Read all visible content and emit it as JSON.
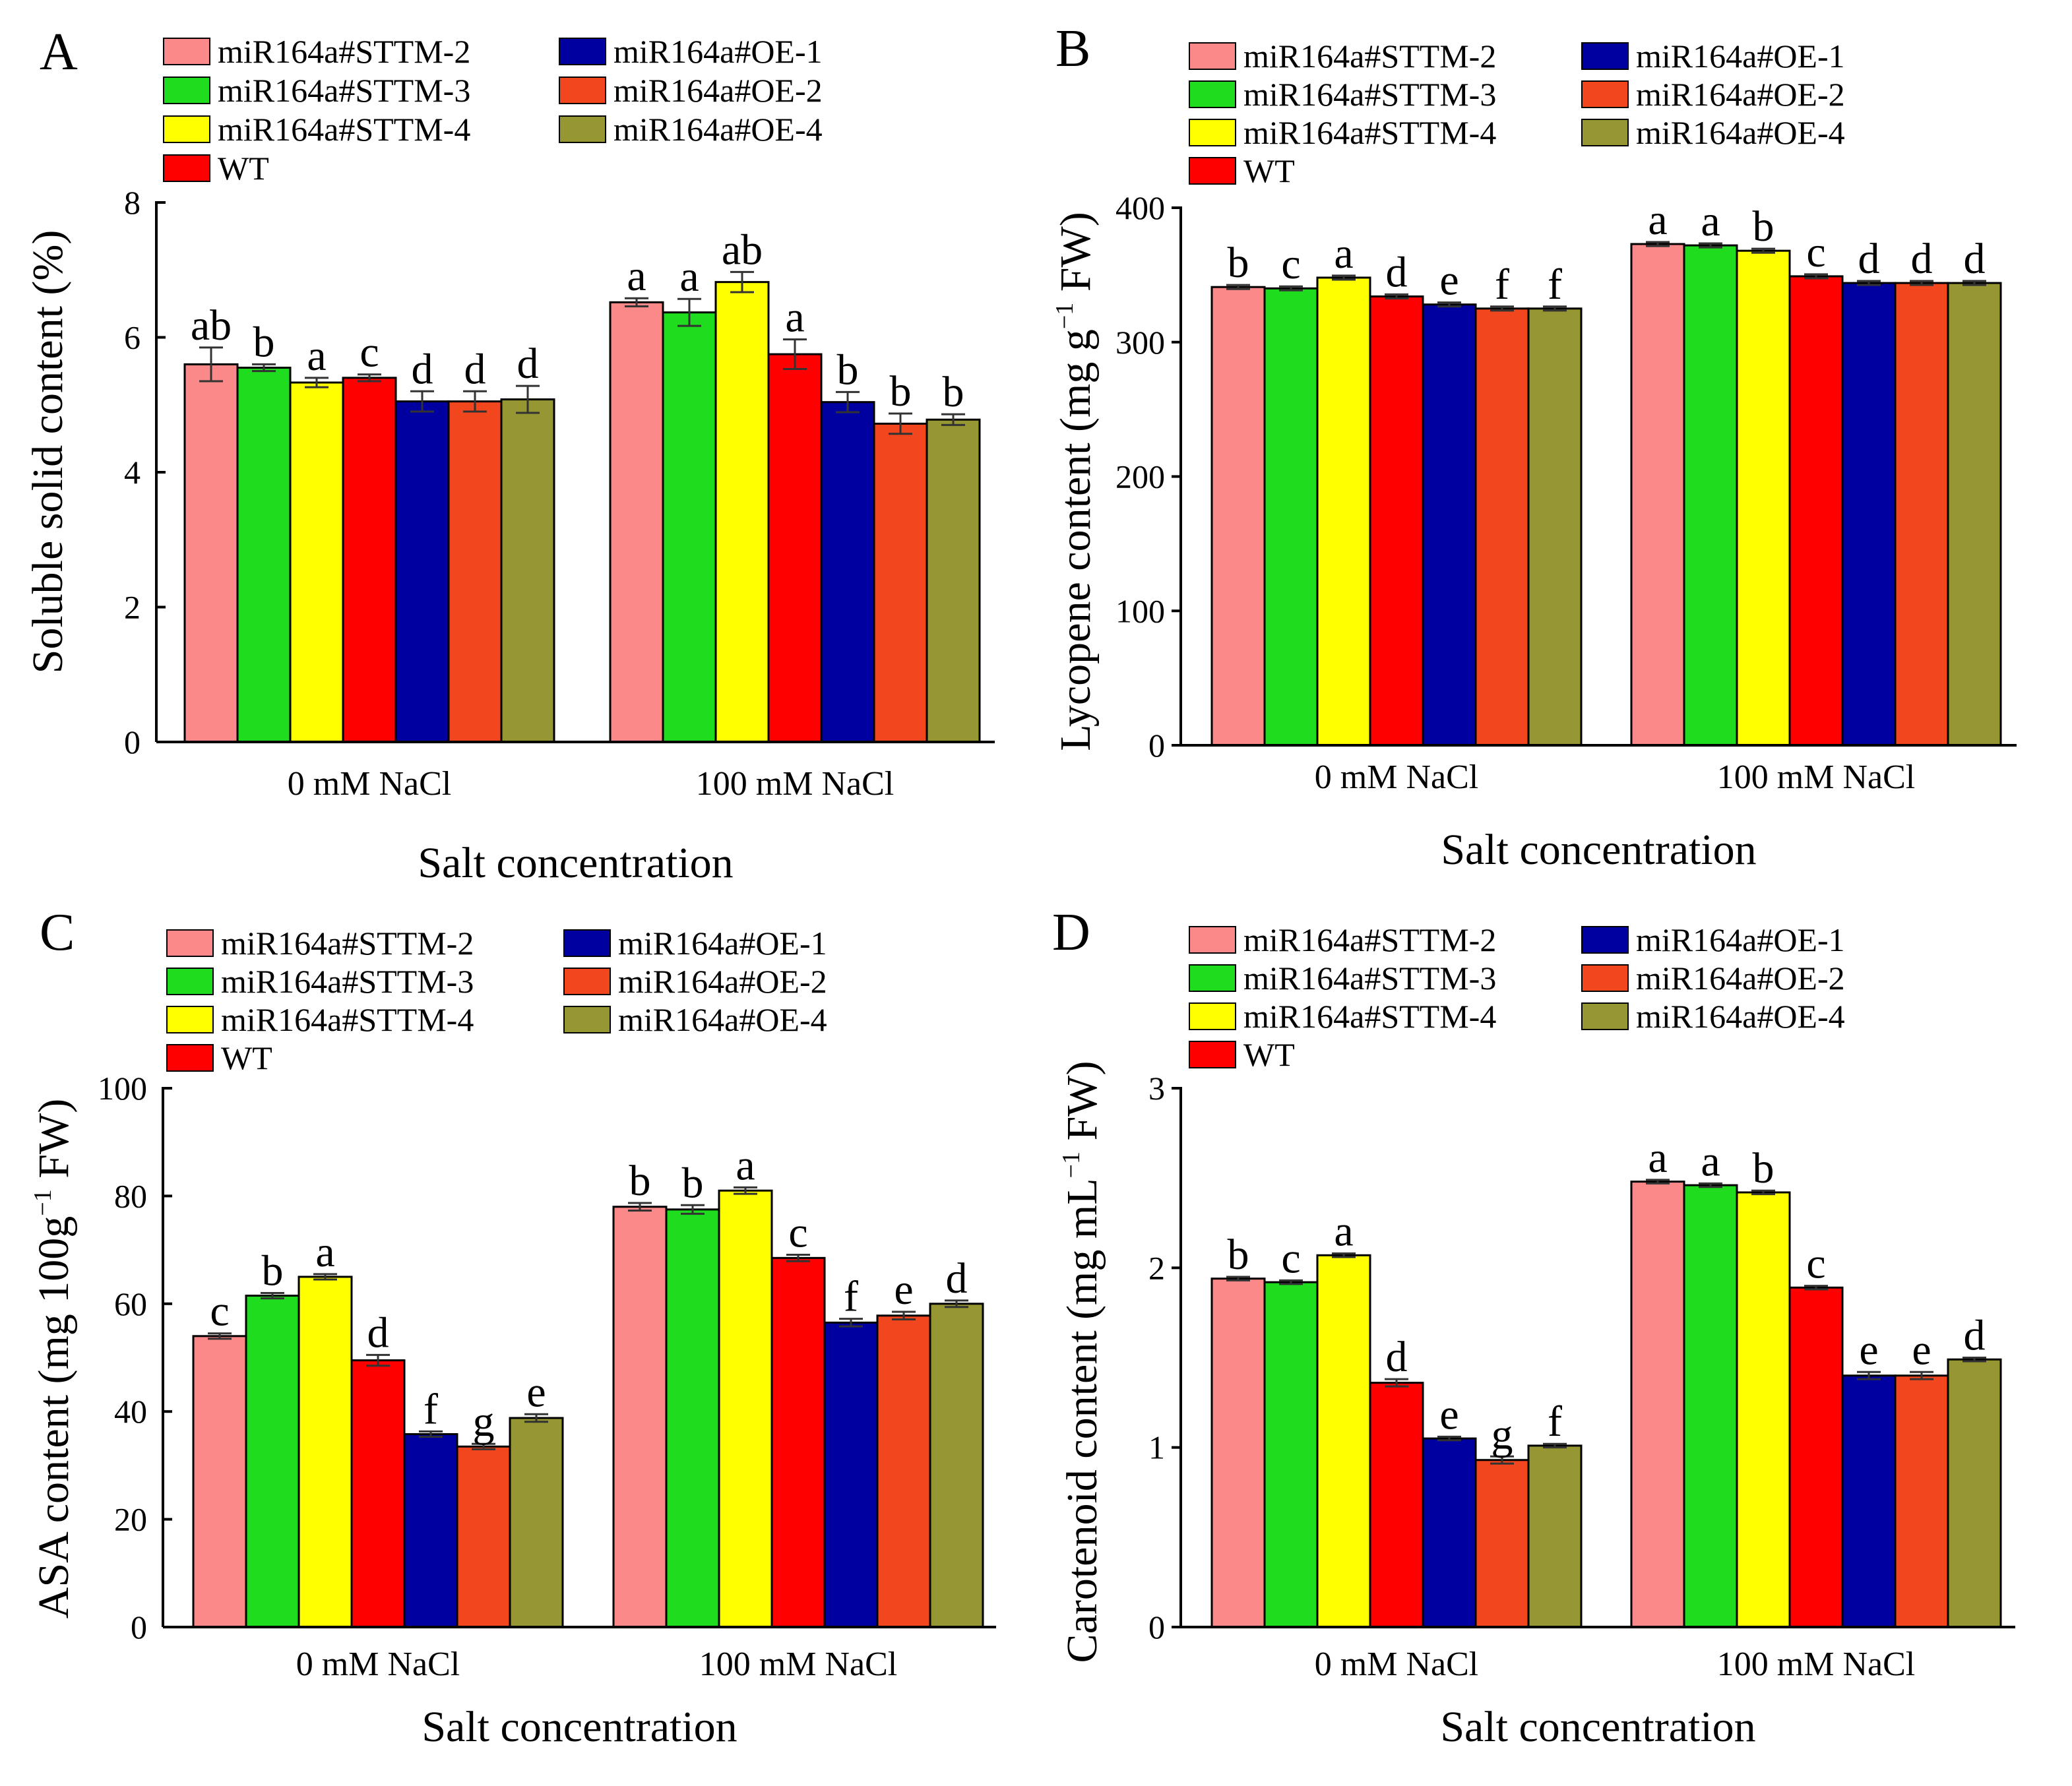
{
  "figure": {
    "groups": [
      "0 mM NaCl",
      "100 mM NaCl"
    ],
    "series": [
      {
        "name": "miR164a#STTM-2",
        "color": "#fb8989"
      },
      {
        "name": "miR164a#STTM-3",
        "color": "#1fdc1f"
      },
      {
        "name": "miR164a#STTM-4",
        "color": "#ffff00"
      },
      {
        "name": "WT",
        "color": "#ff0000"
      },
      {
        "name": "miR164a#OE-1",
        "color": "#0000a0"
      },
      {
        "name": "miR164a#OE-2",
        "color": "#f2461e"
      },
      {
        "name": "miR164a#OE-4",
        "color": "#969632"
      }
    ],
    "legend_order": [
      0,
      4,
      1,
      5,
      2,
      6,
      3
    ]
  },
  "chart_data": [
    {
      "type": "bar",
      "panel": "A",
      "categories": [
        "0 mM NaCl",
        "100 mM NaCl"
      ],
      "xlabel": "Salt concentration",
      "ylabel_parts": [
        "Soluble solid content (%)"
      ],
      "ylim": [
        0,
        8
      ],
      "yticks": [
        0,
        2,
        4,
        6,
        8
      ],
      "series": [
        {
          "name": "miR164a#STTM-2",
          "values": [
            5.6,
            6.52
          ],
          "errors": [
            0.25,
            0.06
          ],
          "letters": [
            "ab",
            "a"
          ]
        },
        {
          "name": "miR164a#STTM-3",
          "values": [
            5.55,
            6.37
          ],
          "errors": [
            0.05,
            0.2
          ],
          "letters": [
            "b",
            "a"
          ]
        },
        {
          "name": "miR164a#STTM-4",
          "values": [
            5.33,
            6.82
          ],
          "errors": [
            0.07,
            0.15
          ],
          "letters": [
            "a",
            "ab"
          ]
        },
        {
          "name": "WT",
          "values": [
            5.4,
            5.75
          ],
          "errors": [
            0.05,
            0.22
          ],
          "letters": [
            "c",
            "a"
          ]
        },
        {
          "name": "miR164a#OE-1",
          "values": [
            5.05,
            5.04
          ],
          "errors": [
            0.15,
            0.15
          ],
          "letters": [
            "d",
            "b"
          ]
        },
        {
          "name": "miR164a#OE-2",
          "values": [
            5.05,
            4.72
          ],
          "errors": [
            0.15,
            0.15
          ],
          "letters": [
            "d",
            "b"
          ]
        },
        {
          "name": "miR164a#OE-4",
          "values": [
            5.08,
            4.78
          ],
          "errors": [
            0.2,
            0.08
          ],
          "letters": [
            "d",
            "b"
          ]
        }
      ]
    },
    {
      "type": "bar",
      "panel": "B",
      "categories": [
        "0 mM NaCl",
        "100 mM NaCl"
      ],
      "xlabel": "Salt concentration",
      "ylabel_parts": [
        "Lycopene content (mg g",
        "−1",
        " FW)"
      ],
      "ylim": [
        0,
        400
      ],
      "yticks": [
        0,
        100,
        200,
        300,
        400
      ],
      "series": [
        {
          "name": "miR164a#STTM-2",
          "values": [
            341,
            373
          ],
          "errors": [
            1.5,
            1.5
          ],
          "letters": [
            "b",
            "a"
          ]
        },
        {
          "name": "miR164a#STTM-3",
          "values": [
            340,
            372
          ],
          "errors": [
            1.5,
            1.5
          ],
          "letters": [
            "c",
            "a"
          ]
        },
        {
          "name": "miR164a#STTM-4",
          "values": [
            348,
            368
          ],
          "errors": [
            1.5,
            1.5
          ],
          "letters": [
            "a",
            "b"
          ]
        },
        {
          "name": "WT",
          "values": [
            334,
            349
          ],
          "errors": [
            1.5,
            1.5
          ],
          "letters": [
            "d",
            "c"
          ]
        },
        {
          "name": "miR164a#OE-1",
          "values": [
            328,
            344
          ],
          "errors": [
            1.5,
            1.5
          ],
          "letters": [
            "e",
            "d"
          ]
        },
        {
          "name": "miR164a#OE-2",
          "values": [
            325,
            344
          ],
          "errors": [
            1.5,
            1.5
          ],
          "letters": [
            "f",
            "d"
          ]
        },
        {
          "name": "miR164a#OE-4",
          "values": [
            325,
            344
          ],
          "errors": [
            1.5,
            1.5
          ],
          "letters": [
            "f",
            "d"
          ]
        }
      ]
    },
    {
      "type": "bar",
      "panel": "C",
      "categories": [
        "0 mM NaCl",
        "100 mM NaCl"
      ],
      "xlabel": "Salt concentration",
      "ylabel_parts": [
        "ASA content (mg 100g",
        "−1",
        " FW)"
      ],
      "ylim": [
        0,
        100
      ],
      "yticks": [
        0,
        20,
        40,
        60,
        80,
        100
      ],
      "series": [
        {
          "name": "miR164a#STTM-2",
          "values": [
            54,
            78
          ],
          "errors": [
            0.5,
            0.7
          ],
          "letters": [
            "c",
            "b"
          ]
        },
        {
          "name": "miR164a#STTM-3",
          "values": [
            61.5,
            77.5
          ],
          "errors": [
            0.5,
            0.8
          ],
          "letters": [
            "b",
            "b"
          ]
        },
        {
          "name": "miR164a#STTM-4",
          "values": [
            65,
            81
          ],
          "errors": [
            0.5,
            0.6
          ],
          "letters": [
            "a",
            "a"
          ]
        },
        {
          "name": "WT",
          "values": [
            49.5,
            68.5
          ],
          "errors": [
            1.0,
            0.6
          ],
          "letters": [
            "d",
            "c"
          ]
        },
        {
          "name": "miR164a#OE-1",
          "values": [
            35.8,
            56.5
          ],
          "errors": [
            0.5,
            0.7
          ],
          "letters": [
            "f",
            "f"
          ]
        },
        {
          "name": "miR164a#OE-2",
          "values": [
            33.5,
            57.8
          ],
          "errors": [
            0.5,
            0.7
          ],
          "letters": [
            "g",
            "e"
          ]
        },
        {
          "name": "miR164a#OE-4",
          "values": [
            38.8,
            60
          ],
          "errors": [
            0.7,
            0.6
          ],
          "letters": [
            "e",
            "d"
          ]
        }
      ]
    },
    {
      "type": "bar",
      "panel": "D",
      "categories": [
        "0 mM NaCl",
        "100 mM NaCl"
      ],
      "xlabel": "Salt concentration",
      "ylabel_parts": [
        "Carotenoid content (mg mL",
        "−1",
        " FW)"
      ],
      "ylim": [
        0,
        3
      ],
      "yticks": [
        0,
        1,
        2,
        3
      ],
      "series": [
        {
          "name": "miR164a#STTM-2",
          "values": [
            1.94,
            2.48
          ],
          "errors": [
            0.01,
            0.01
          ],
          "letters": [
            "b",
            "a"
          ]
        },
        {
          "name": "miR164a#STTM-3",
          "values": [
            1.92,
            2.46
          ],
          "errors": [
            0.01,
            0.01
          ],
          "letters": [
            "c",
            "a"
          ]
        },
        {
          "name": "miR164a#STTM-4",
          "values": [
            2.07,
            2.42
          ],
          "errors": [
            0.01,
            0.01
          ],
          "letters": [
            "a",
            "b"
          ]
        },
        {
          "name": "WT",
          "values": [
            1.36,
            1.89
          ],
          "errors": [
            0.02,
            0.01
          ],
          "letters": [
            "d",
            "c"
          ]
        },
        {
          "name": "miR164a#OE-1",
          "values": [
            1.05,
            1.4
          ],
          "errors": [
            0.01,
            0.02
          ],
          "letters": [
            "e",
            "e"
          ]
        },
        {
          "name": "miR164a#OE-2",
          "values": [
            0.93,
            1.4
          ],
          "errors": [
            0.02,
            0.02
          ],
          "letters": [
            "g",
            "e"
          ]
        },
        {
          "name": "miR164a#OE-4",
          "values": [
            1.01,
            1.49
          ],
          "errors": [
            0.01,
            0.01
          ],
          "letters": [
            "f",
            "d"
          ]
        }
      ]
    }
  ]
}
